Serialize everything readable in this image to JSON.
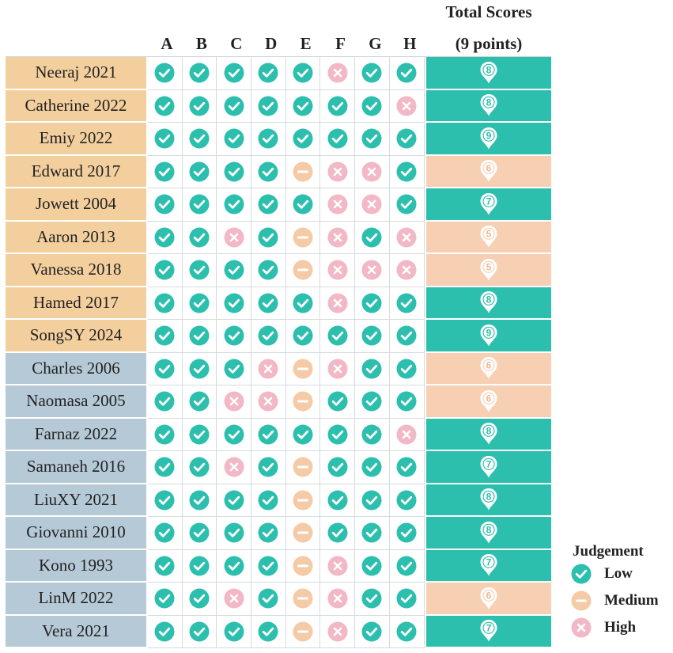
{
  "header": {
    "title_line1": "Total Scores",
    "title_line2": "(9 points)"
  },
  "columns": [
    "A",
    "B",
    "C",
    "D",
    "E",
    "F",
    "G",
    "H"
  ],
  "colors": {
    "low": "#2dbfae",
    "medium": "#f5caa6",
    "high": "#f2b8c5",
    "group1_bg": "#f4cf9e",
    "group2_bg": "#b5c9d6",
    "score_high_bg": "#2dbfae",
    "score_low_bg": "#f7d0b3"
  },
  "rows": [
    {
      "study": "Neeraj 2021",
      "group": 1,
      "judgements": [
        "low",
        "low",
        "low",
        "low",
        "low",
        "high",
        "low",
        "low"
      ],
      "score": "8"
    },
    {
      "study": "Catherine 2022",
      "group": 1,
      "judgements": [
        "low",
        "low",
        "low",
        "low",
        "low",
        "low",
        "low",
        "high"
      ],
      "score": "8"
    },
    {
      "study": "Emiy 2022",
      "group": 1,
      "judgements": [
        "low",
        "low",
        "low",
        "low",
        "low",
        "low",
        "low",
        "low"
      ],
      "score": "9"
    },
    {
      "study": "Edward 2017",
      "group": 1,
      "judgements": [
        "low",
        "low",
        "low",
        "low",
        "medium",
        "high",
        "high",
        "low"
      ],
      "score": "6"
    },
    {
      "study": "Jowett 2004",
      "group": 1,
      "judgements": [
        "low",
        "low",
        "low",
        "low",
        "low",
        "high",
        "high",
        "low"
      ],
      "score": "7"
    },
    {
      "study": "Aaron 2013",
      "group": 1,
      "judgements": [
        "low",
        "low",
        "high",
        "low",
        "medium",
        "high",
        "low",
        "high"
      ],
      "score": "5"
    },
    {
      "study": "Vanessa 2018",
      "group": 1,
      "judgements": [
        "low",
        "low",
        "low",
        "low",
        "medium",
        "high",
        "high",
        "high"
      ],
      "score": "5"
    },
    {
      "study": "Hamed 2017",
      "group": 1,
      "judgements": [
        "low",
        "low",
        "low",
        "low",
        "low",
        "high",
        "low",
        "low"
      ],
      "score": "8"
    },
    {
      "study": "SongSY 2024",
      "group": 1,
      "judgements": [
        "low",
        "low",
        "low",
        "low",
        "low",
        "low",
        "low",
        "low"
      ],
      "score": "9"
    },
    {
      "study": "Charles 2006",
      "group": 2,
      "judgements": [
        "low",
        "low",
        "low",
        "high",
        "medium",
        "high",
        "low",
        "low"
      ],
      "score": "6"
    },
    {
      "study": "Naomasa 2005",
      "group": 2,
      "judgements": [
        "low",
        "low",
        "high",
        "high",
        "medium",
        "low",
        "low",
        "low"
      ],
      "score": "6"
    },
    {
      "study": "Farnaz 2022",
      "group": 2,
      "judgements": [
        "low",
        "low",
        "low",
        "low",
        "low",
        "low",
        "low",
        "high"
      ],
      "score": "8"
    },
    {
      "study": "Samaneh 2016",
      "group": 2,
      "judgements": [
        "low",
        "low",
        "high",
        "low",
        "medium",
        "low",
        "low",
        "low"
      ],
      "score": "7"
    },
    {
      "study": "LiuXY 2021",
      "group": 2,
      "judgements": [
        "low",
        "low",
        "low",
        "low",
        "medium",
        "low",
        "low",
        "low"
      ],
      "score": "8"
    },
    {
      "study": "Giovanni 2010",
      "group": 2,
      "judgements": [
        "low",
        "low",
        "low",
        "low",
        "medium",
        "low",
        "low",
        "low"
      ],
      "score": "8"
    },
    {
      "study": "Kono 1993",
      "group": 2,
      "judgements": [
        "low",
        "low",
        "low",
        "low",
        "medium",
        "high",
        "low",
        "low"
      ],
      "score": "7"
    },
    {
      "study": "LinM 2022",
      "group": 2,
      "judgements": [
        "low",
        "low",
        "high",
        "low",
        "medium",
        "high",
        "low",
        "low"
      ],
      "score": "6"
    },
    {
      "study": "Vera 2021",
      "group": 2,
      "judgements": [
        "low",
        "low",
        "low",
        "low",
        "medium",
        "high",
        "low",
        "low"
      ],
      "score": "7"
    }
  ],
  "legend": {
    "title": "Judgement",
    "items": [
      {
        "key": "low",
        "label": "Low"
      },
      {
        "key": "medium",
        "label": "Medium"
      },
      {
        "key": "high",
        "label": "High"
      }
    ]
  }
}
